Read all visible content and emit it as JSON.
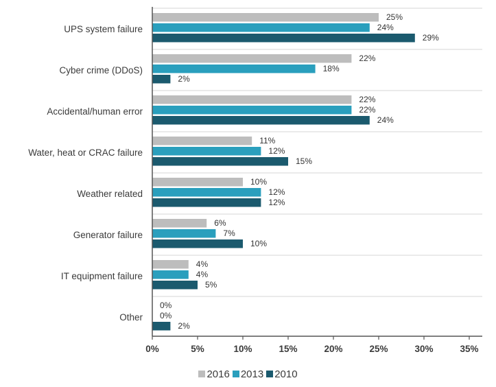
{
  "chart_data": {
    "type": "bar",
    "orientation": "horizontal",
    "categories": [
      "UPS system failure",
      "Cyber crime (DDoS)",
      "Accidental/human error",
      "Water, heat or CRAC failure",
      "Weather related",
      "Generator failure",
      "IT equipment failure",
      "Other"
    ],
    "series": [
      {
        "name": "2016",
        "color": "#bdbdbd",
        "values": [
          25,
          22,
          22,
          11,
          10,
          6,
          4,
          0
        ]
      },
      {
        "name": "2013",
        "color": "#2a9fbd",
        "values": [
          24,
          18,
          22,
          12,
          12,
          7,
          4,
          0
        ]
      },
      {
        "name": "2010",
        "color": "#1b5a6e",
        "values": [
          29,
          2,
          24,
          15,
          12,
          10,
          5,
          2
        ]
      }
    ],
    "value_labels": [
      [
        "25%",
        "22%",
        "22%",
        "11%",
        "10%",
        "6%",
        "4%",
        "0%"
      ],
      [
        "24%",
        "18%",
        "22%",
        "12%",
        "12%",
        "7%",
        "4%",
        "0%"
      ],
      [
        "29%",
        "2%",
        "24%",
        "15%",
        "12%",
        "10%",
        "5%",
        "2%"
      ]
    ],
    "xlim": [
      0,
      35
    ],
    "xticks": [
      0,
      5,
      10,
      15,
      20,
      25,
      30,
      35
    ],
    "xtick_labels": [
      "0%",
      "5%",
      "10%",
      "15%",
      "20%",
      "25%",
      "30%",
      "35%"
    ],
    "grid": "horizontal separators between categories",
    "legend_position": "bottom-center",
    "title": "",
    "xlabel": "",
    "ylabel": ""
  }
}
